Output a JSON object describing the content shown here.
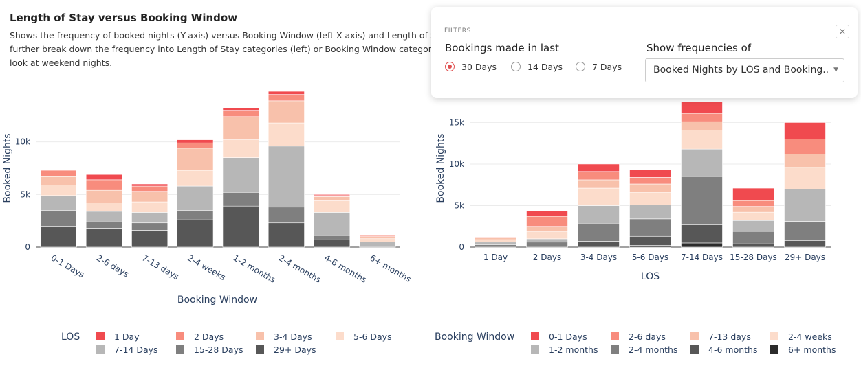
{
  "page": {
    "title": "Length of Stay versus Booking Window",
    "description_lines": [
      "Shows the frequency of booked nights (Y-axis) versus Booking Window (left X-axis) and Length of Stay (rig",
      "further break down the frequency into Length of Stay categories (left) or Booking Window categories (righ",
      "look at weekend nights."
    ]
  },
  "filters": {
    "label": "FILTERS",
    "close_icon": "close-icon",
    "bookings_label": "Bookings made in last",
    "bookings_options": [
      "30 Days",
      "14 Days",
      "7 Days"
    ],
    "bookings_selected": "30 Days",
    "freq_label": "Show frequencies of",
    "freq_selected": "Booked Nights by LOS and Booking..",
    "dropdown_icon": "chevron-down-icon"
  },
  "chart_data": [
    {
      "type": "bar",
      "stacked": true,
      "xlabel": "Booking Window",
      "ylabel": "Booked Nights",
      "ylim": [
        0,
        15000
      ],
      "yticks": [
        0,
        5000,
        10000
      ],
      "ytick_labels": [
        "0",
        "5k",
        "10k"
      ],
      "categories": [
        "0-1 Days",
        "2-6 days",
        "7-13 days",
        "2-4 weeks",
        "1-2 months",
        "2-4 months",
        "4-6 months",
        "6+ months"
      ],
      "legend_title": "LOS",
      "legend_position": "bottom",
      "series": [
        {
          "name": "29+ Days",
          "color": "#575757",
          "values": [
            2000,
            1800,
            1600,
            2600,
            3900,
            2300,
            700,
            0
          ]
        },
        {
          "name": "15-28 Days",
          "color": "#7f7f7f",
          "values": [
            1500,
            600,
            700,
            900,
            1300,
            1500,
            400,
            0
          ]
        },
        {
          "name": "7-14 Days",
          "color": "#b7b7b7",
          "values": [
            1400,
            1000,
            1000,
            2300,
            3300,
            5800,
            2200,
            500
          ]
        },
        {
          "name": "5-6 Days",
          "color": "#fcdccb",
          "values": [
            1000,
            800,
            1000,
            1500,
            1700,
            2200,
            1100,
            300
          ]
        },
        {
          "name": "3-4 Days",
          "color": "#f8c1ab",
          "values": [
            800,
            1200,
            1000,
            2100,
            2200,
            2100,
            400,
            200
          ]
        },
        {
          "name": "2 Days",
          "color": "#f88c7d",
          "values": [
            600,
            1000,
            500,
            500,
            600,
            600,
            100,
            100
          ]
        },
        {
          "name": "1 Day",
          "color": "#f04a4f",
          "values": [
            0,
            500,
            200,
            300,
            200,
            300,
            100,
            0
          ]
        }
      ],
      "legend_entries": [
        "1 Day",
        "2 Days",
        "3-4 Days",
        "5-6 Days",
        "7-14 Days",
        "15-28 Days",
        "29+ Days"
      ]
    },
    {
      "type": "bar",
      "stacked": true,
      "xlabel": "LOS",
      "ylabel": "Booked Nights",
      "ylim": [
        0,
        19000
      ],
      "yticks": [
        0,
        5000,
        10000,
        15000
      ],
      "ytick_labels": [
        "0",
        "5k",
        "10k",
        "15k"
      ],
      "categories": [
        "1 Day",
        "2 Days",
        "3-4 Days",
        "5-6 Days",
        "7-14 Days",
        "15-28 Days",
        "29+ Days"
      ],
      "legend_title": "Booking Window",
      "legend_position": "bottom",
      "series": [
        {
          "name": "6+ months",
          "color": "#2b2b2b",
          "values": [
            0,
            0,
            0,
            200,
            500,
            100,
            0
          ]
        },
        {
          "name": "4-6 months",
          "color": "#575757",
          "values": [
            100,
            100,
            700,
            1100,
            2200,
            300,
            800
          ]
        },
        {
          "name": "2-4 months",
          "color": "#7f7f7f",
          "values": [
            200,
            500,
            2100,
            2100,
            5800,
            1500,
            2300
          ]
        },
        {
          "name": "1-2 months",
          "color": "#b7b7b7",
          "values": [
            300,
            400,
            2200,
            1700,
            3300,
            1300,
            3900
          ]
        },
        {
          "name": "2-4 weeks",
          "color": "#fcdccb",
          "values": [
            300,
            900,
            2100,
            1500,
            2300,
            1000,
            2600
          ]
        },
        {
          "name": "7-13 days",
          "color": "#f8c1ab",
          "values": [
            200,
            600,
            1000,
            1000,
            1000,
            700,
            1600
          ]
        },
        {
          "name": "2-6 days",
          "color": "#f88c7d",
          "values": [
            100,
            1200,
            1000,
            800,
            1000,
            700,
            1800
          ]
        },
        {
          "name": "0-1 Days",
          "color": "#f04a4f",
          "values": [
            0,
            700,
            900,
            900,
            1400,
            1500,
            2000
          ]
        }
      ],
      "legend_entries": [
        "0-1 Days",
        "2-6 days",
        "7-13 days",
        "2-4 weeks",
        "1-2 months",
        "2-4 months",
        "4-6 months",
        "6+ months"
      ]
    }
  ]
}
